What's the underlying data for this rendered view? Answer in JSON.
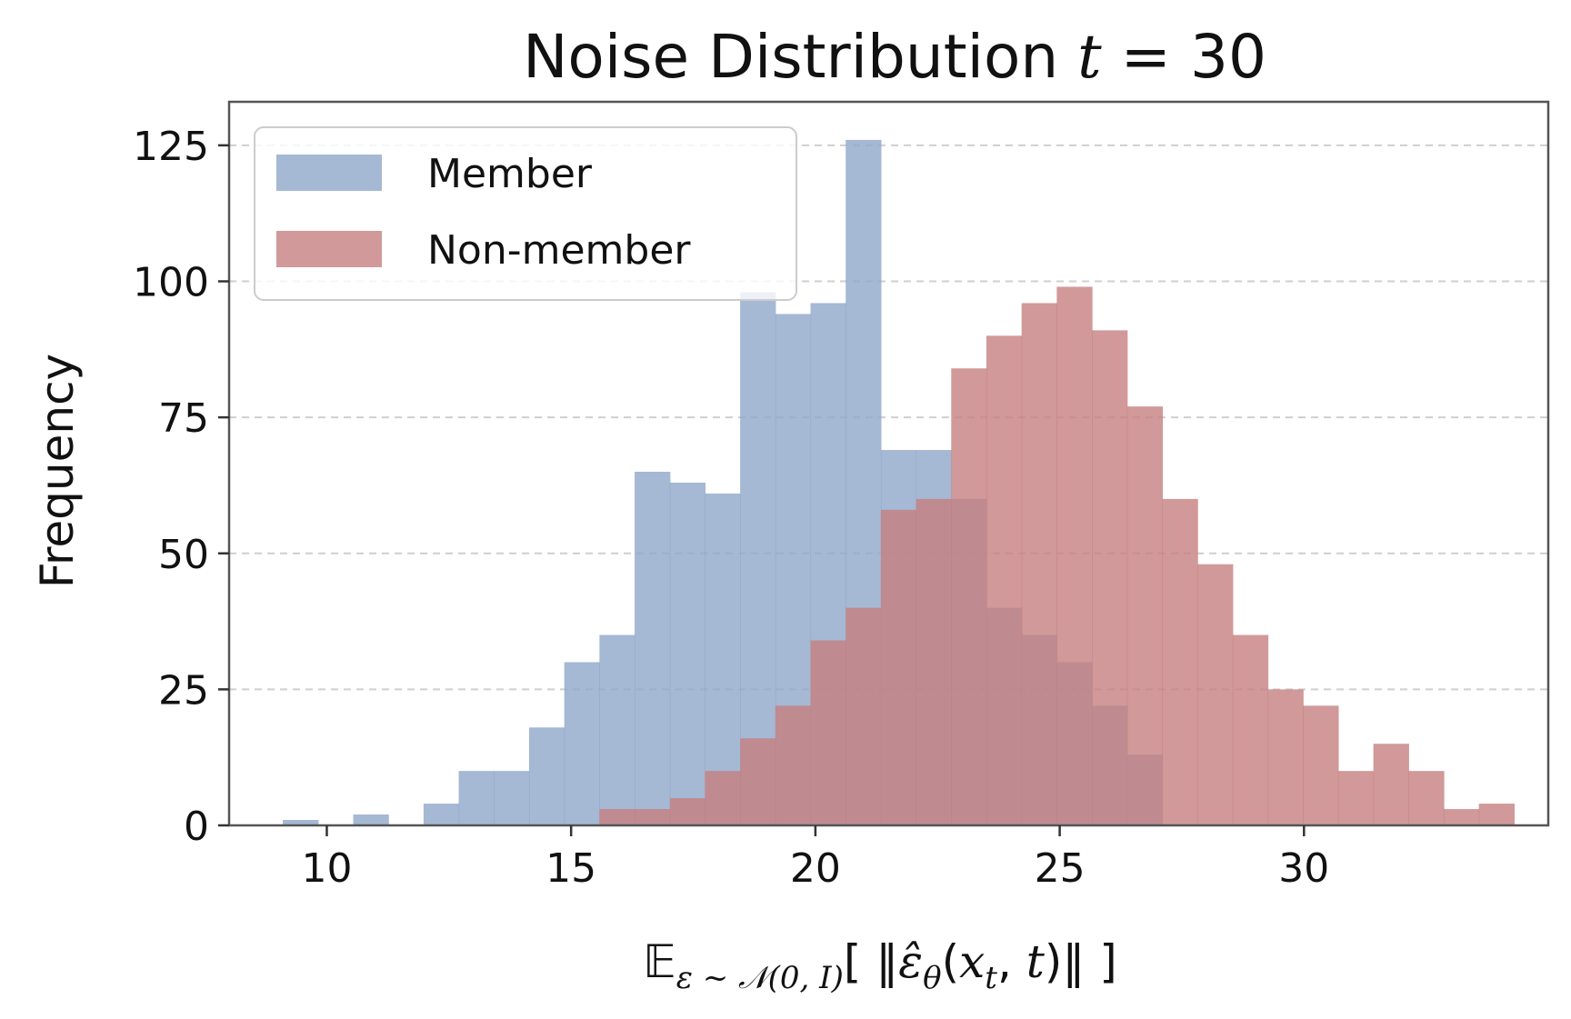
{
  "chart_data": {
    "type": "bar",
    "title_text": "Noise Distribution ",
    "title_var": "t",
    "title_rest": " = 30",
    "xlabel": "𝔼ε ~ 𝒩(0, I)[ ‖ε̂θ(xt, t)‖ ]",
    "ylabel": "Frequency",
    "xlim": [
      8,
      35
    ],
    "ylim": [
      0,
      133
    ],
    "x_ticks": [
      10,
      15,
      20,
      25,
      30
    ],
    "y_ticks": [
      0,
      25,
      50,
      75,
      100,
      125
    ],
    "grid": "y-dashed",
    "legend_position": "top-left",
    "series": [
      {
        "name": "Member",
        "color": "#8fa6c9",
        "bin_start": 9.1,
        "bin_width": 0.72,
        "counts": [
          1,
          0,
          2,
          0,
          4,
          10,
          10,
          18,
          30,
          35,
          65,
          63,
          61,
          98,
          94,
          96,
          126,
          69,
          69,
          60,
          40,
          35,
          30,
          22,
          13,
          0,
          0
        ]
      },
      {
        "name": "Non-member",
        "color": "#c6807f",
        "bin_start": 15.58,
        "bin_width": 0.72,
        "counts": [
          3,
          3,
          5,
          10,
          16,
          22,
          34,
          40,
          58,
          60,
          84,
          90,
          96,
          99,
          91,
          77,
          60,
          48,
          35,
          25,
          22,
          10,
          15,
          10,
          3,
          4
        ]
      }
    ]
  }
}
